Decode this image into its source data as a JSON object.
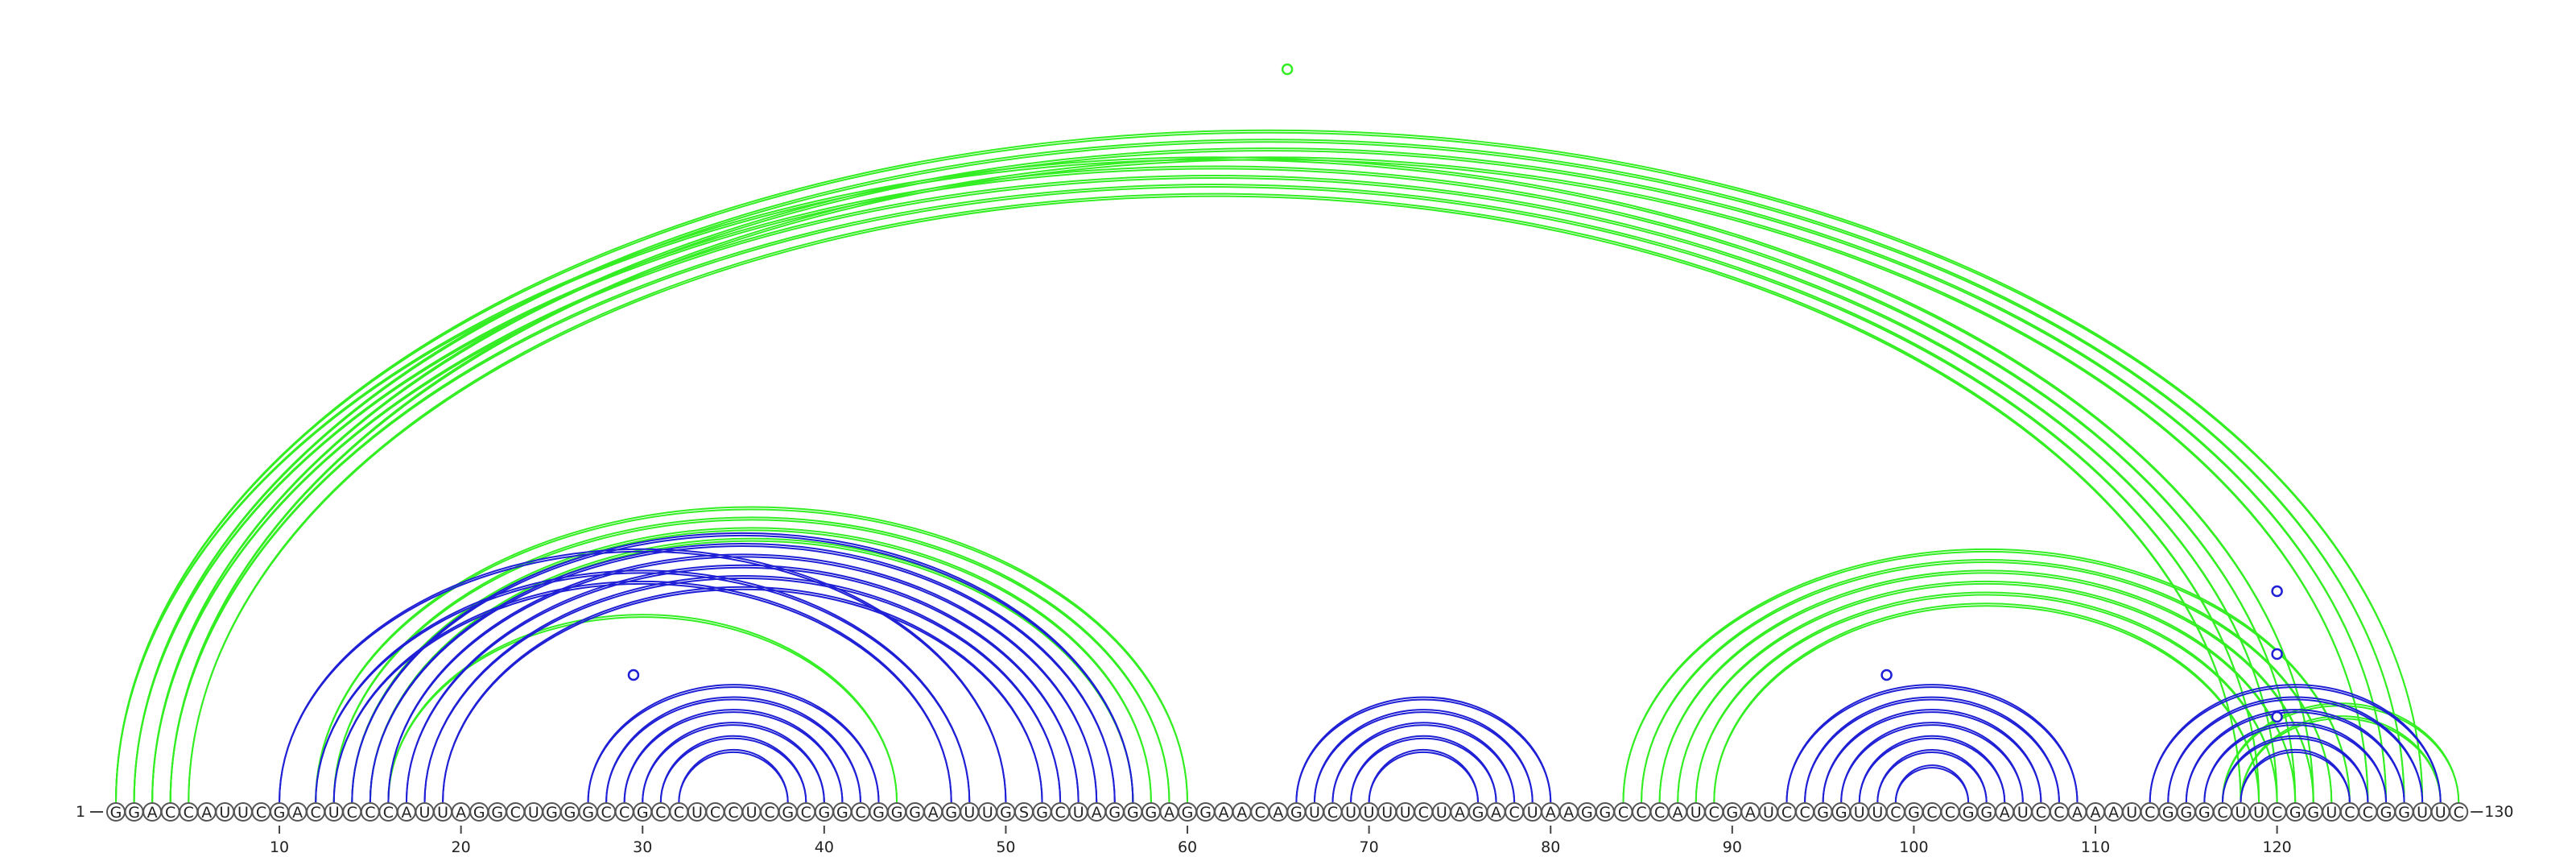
{
  "sequence": "GGACCAUUCGACUCCCAUUAGGCUGGGCCGCCUCCUCGCGGCGGGAGUUGSGCUAGGGAGGAACAGUCUUUUCUAGACUAAGGCCCAUCGAUCCGGUUCGCCGGAUCCAAAUCGGGCUUCGGUCCGGUUC",
  "start_label": "1",
  "end_label": "130",
  "ticks": [
    10,
    20,
    30,
    40,
    50,
    60,
    70,
    80,
    90,
    100,
    110,
    120
  ],
  "colors": {
    "green": "#33ee22",
    "blue": "#1f1fd6"
  },
  "green_arcs": [
    [
      1,
      122
    ],
    [
      2,
      121
    ],
    [
      3,
      120
    ],
    [
      4,
      119
    ],
    [
      5,
      118
    ],
    [
      1,
      128
    ],
    [
      2,
      127
    ],
    [
      3,
      126
    ],
    [
      4,
      125
    ],
    [
      12,
      60
    ],
    [
      13,
      59
    ],
    [
      14,
      58
    ],
    [
      15,
      57
    ],
    [
      16,
      44
    ],
    [
      84,
      124
    ],
    [
      85,
      123
    ],
    [
      86,
      122
    ],
    [
      87,
      121
    ],
    [
      88,
      120
    ],
    [
      89,
      119
    ],
    [
      117,
      130
    ],
    [
      118,
      129
    ]
  ],
  "blue_arcs": [
    [
      10,
      50
    ],
    [
      12,
      48
    ],
    [
      13,
      47
    ],
    [
      14,
      57
    ],
    [
      15,
      56
    ],
    [
      16,
      55
    ],
    [
      17,
      54
    ],
    [
      18,
      53
    ],
    [
      19,
      52
    ],
    [
      27,
      43
    ],
    [
      28,
      42
    ],
    [
      29,
      41
    ],
    [
      30,
      40
    ],
    [
      31,
      39
    ],
    [
      32,
      38
    ],
    [
      66,
      80
    ],
    [
      67,
      79
    ],
    [
      68,
      78
    ],
    [
      69,
      77
    ],
    [
      70,
      76
    ],
    [
      93,
      109
    ],
    [
      94,
      108
    ],
    [
      95,
      107
    ],
    [
      96,
      106
    ],
    [
      97,
      105
    ],
    [
      98,
      104
    ],
    [
      99,
      103
    ],
    [
      113,
      129
    ],
    [
      114,
      128
    ],
    [
      115,
      127
    ],
    [
      116,
      126
    ],
    [
      117,
      125
    ],
    [
      118,
      124
    ]
  ],
  "markers": [
    {
      "position": 65.5,
      "level": 0.9,
      "color": "green"
    },
    {
      "position": 29.5,
      "level": 0.5,
      "color": "blue"
    },
    {
      "position": 120,
      "level": 0.9,
      "color": "blue"
    },
    {
      "position": 120,
      "level": 0.6,
      "color": "blue"
    },
    {
      "position": 120,
      "level": 0.3,
      "color": "blue"
    },
    {
      "position": 98.5,
      "level": 0.5,
      "color": "blue"
    }
  ]
}
